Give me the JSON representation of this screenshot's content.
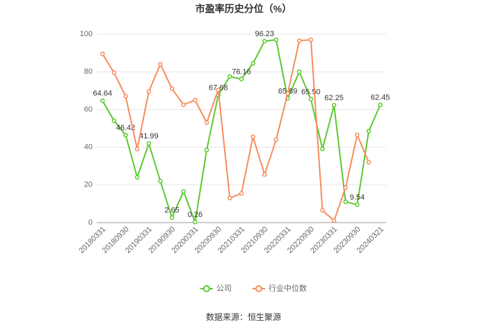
{
  "chart_data": {
    "type": "line",
    "title": "市盈率历史分位（%）",
    "source": "数据来源：恒生聚源",
    "categories": [
      "20180331",
      null,
      "20180930",
      null,
      "20190331",
      null,
      "20190930",
      null,
      "20200331",
      null,
      "20200930",
      null,
      "20210331",
      null,
      "20210930",
      null,
      "20220331",
      null,
      "20220930",
      null,
      "20230331",
      null,
      "20230930",
      null,
      "20240321"
    ],
    "series": [
      {
        "name": "公司",
        "color": "#5cc82e",
        "values": [
          64.64,
          54,
          46.42,
          24,
          41.99,
          22,
          2.65,
          16.5,
          0.26,
          38.5,
          67.68,
          77.5,
          76.16,
          84.5,
          96.23,
          97,
          65.89,
          80,
          65.5,
          39,
          62.25,
          11,
          9.54,
          48.5,
          62.45
        ],
        "value_labels": [
          "64.64",
          null,
          "46.42",
          null,
          "41.99",
          null,
          "2.65",
          null,
          "0.26",
          null,
          "67.68",
          null,
          "76.16",
          null,
          "96.23",
          null,
          "65.89",
          null,
          "65.50",
          null,
          "62.25",
          null,
          "9.54",
          null,
          "62.45"
        ]
      },
      {
        "name": "行业中位数",
        "color": "#f78b5c",
        "values": [
          89.5,
          79.5,
          67,
          39,
          69.5,
          84,
          71,
          62.5,
          65,
          53,
          70.5,
          13,
          15.5,
          45.5,
          25.5,
          44,
          68.5,
          96.5,
          97,
          6.5,
          1,
          18.5,
          46.5,
          32,
          null
        ]
      }
    ],
    "ylim": [
      0,
      100
    ],
    "yticks": [
      0,
      20,
      40,
      60,
      80,
      100
    ],
    "grid": true
  }
}
